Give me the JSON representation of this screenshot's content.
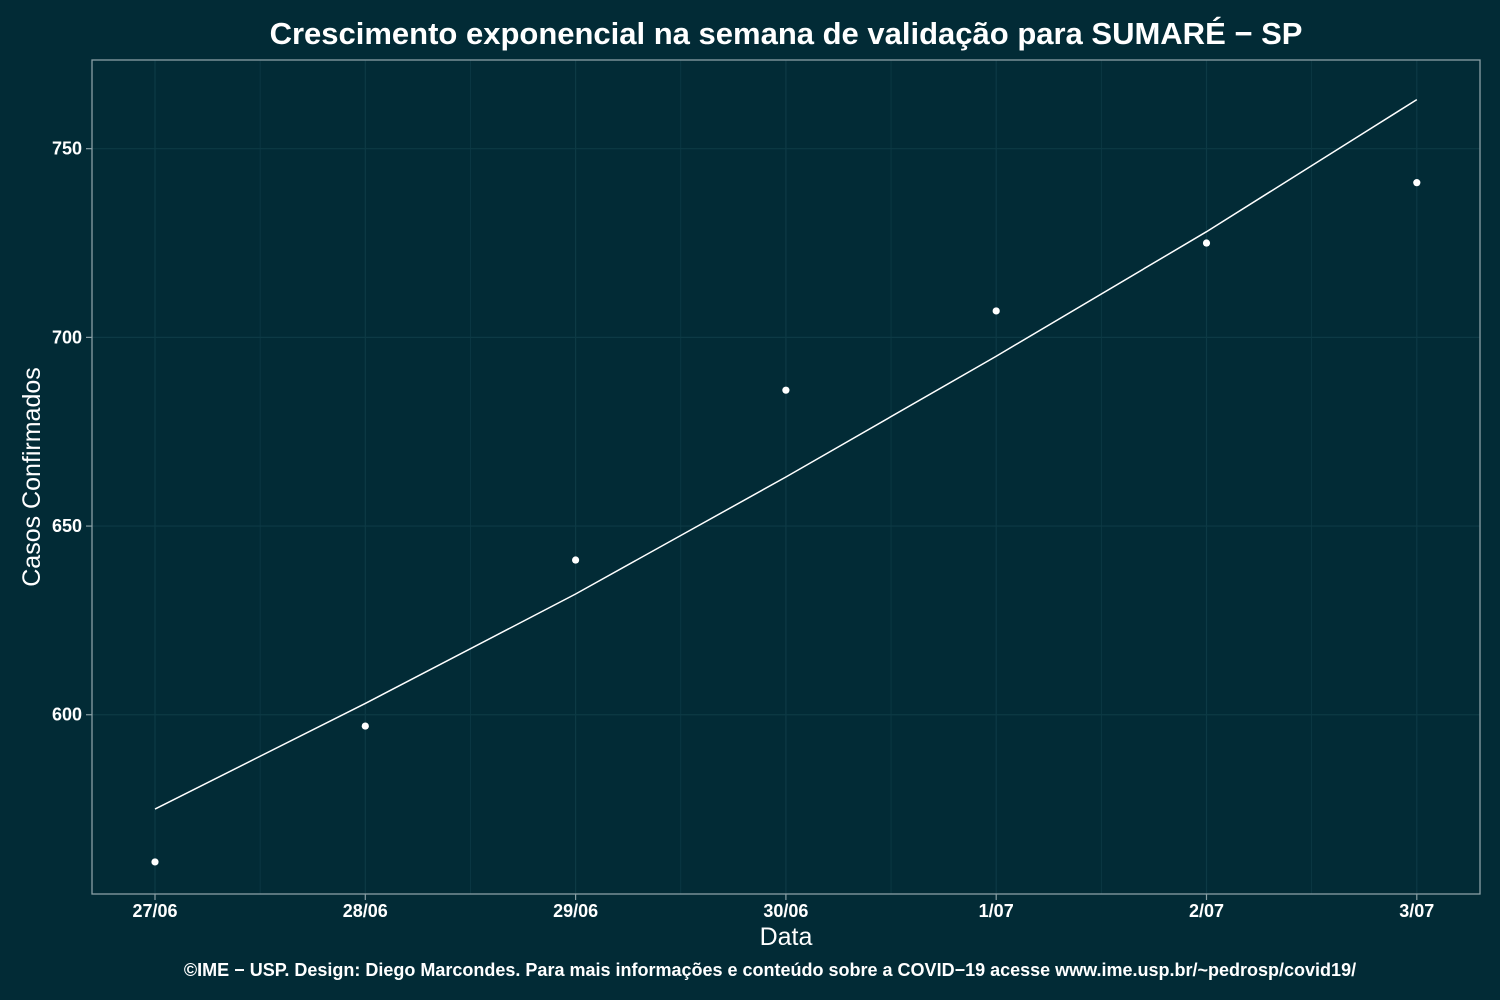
{
  "chart_data": {
    "type": "scatter",
    "title": "Crescimento exponencial na semana de validação para SUMARÉ − SP",
    "xlabel": "Data",
    "ylabel": "Casos Confirmados",
    "caption": "©IME − USP. Design: Diego Marcondes. Para mais informações e conteúdo sobre a COVID−19 acesse www.ime.usp.br/~pedrosp/covid19/",
    "categories": [
      "27/06",
      "28/06",
      "29/06",
      "30/06",
      "1/07",
      "2/07",
      "3/07"
    ],
    "series": [
      {
        "kind": "points",
        "values": [
          561,
          597,
          641,
          686,
          707,
          725,
          741
        ]
      },
      {
        "kind": "line",
        "values": [
          575,
          603,
          632,
          663,
          695,
          728,
          763
        ]
      }
    ],
    "yticks": [
      600,
      650,
      700,
      750
    ],
    "ylim": [
      552.5,
      773.5
    ],
    "grid": true,
    "legend": "none",
    "colors": {
      "background": "#022b36",
      "grid": "#0d3a45",
      "panel_border": "#8a9fa5",
      "marks": "#ffffff"
    }
  }
}
